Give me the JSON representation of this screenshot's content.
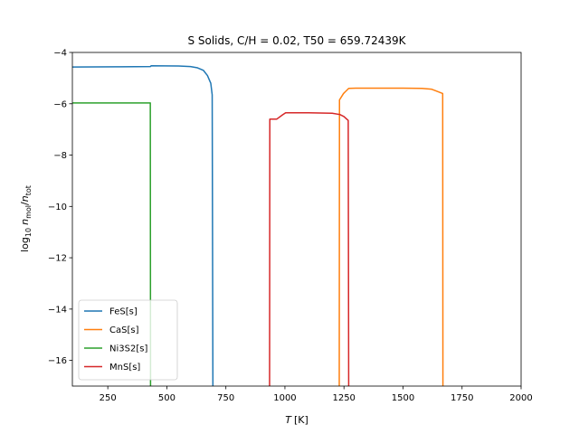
{
  "chart_data": {
    "type": "line",
    "title": "S Solids, C/H = 0.02, T50 = 659.72439K",
    "xlabel_main": "T",
    "xlabel_unit": "[K]",
    "ylabel": {
      "prefix": "log",
      "base": "10",
      "n": "n",
      "num_sub": "mol",
      "den_sub": "tot"
    },
    "xlim": [
      100,
      2000
    ],
    "ylim": [
      -17,
      -4
    ],
    "xticks": [
      250,
      500,
      750,
      1000,
      1250,
      1500,
      1750,
      2000
    ],
    "yticks": [
      -16,
      -14,
      -12,
      -10,
      -8,
      -6,
      -4
    ],
    "legend_position": "lower-left",
    "series": [
      {
        "name": "FeS[s]",
        "color": "#1f77b4",
        "points": [
          [
            100,
            -4.57
          ],
          [
            300,
            -4.56
          ],
          [
            430,
            -4.55
          ],
          [
            434,
            -4.52
          ],
          [
            550,
            -4.53
          ],
          [
            600,
            -4.55
          ],
          [
            630,
            -4.6
          ],
          [
            655,
            -4.7
          ],
          [
            672,
            -4.9
          ],
          [
            686,
            -5.2
          ],
          [
            692,
            -5.65
          ],
          [
            695,
            -17
          ]
        ]
      },
      {
        "name": "CaS[s]",
        "color": "#ff7f0e",
        "points": [
          [
            1230,
            -17
          ],
          [
            1231,
            -5.85
          ],
          [
            1248,
            -5.6
          ],
          [
            1270,
            -5.4
          ],
          [
            1300,
            -5.39
          ],
          [
            1500,
            -5.39
          ],
          [
            1580,
            -5.4
          ],
          [
            1620,
            -5.43
          ],
          [
            1640,
            -5.5
          ],
          [
            1668,
            -5.6
          ],
          [
            1669,
            -17
          ]
        ]
      },
      {
        "name": "Ni3S2[s]",
        "color": "#2ca02c",
        "points": [
          [
            100,
            -5.97
          ],
          [
            200,
            -5.97
          ],
          [
            300,
            -5.97
          ],
          [
            430,
            -5.97
          ],
          [
            431,
            -17
          ]
        ]
      },
      {
        "name": "MnS[s]",
        "color": "#d62728",
        "points": [
          [
            935,
            -17
          ],
          [
            936,
            -6.6
          ],
          [
            965,
            -6.6
          ],
          [
            990,
            -6.43
          ],
          [
            1003,
            -6.35
          ],
          [
            1100,
            -6.35
          ],
          [
            1200,
            -6.37
          ],
          [
            1233,
            -6.42
          ],
          [
            1250,
            -6.5
          ],
          [
            1268,
            -6.65
          ],
          [
            1270,
            -17
          ]
        ]
      }
    ]
  }
}
